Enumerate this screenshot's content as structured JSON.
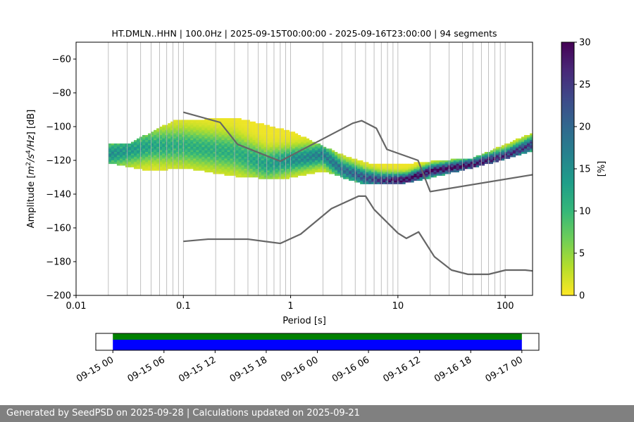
{
  "chart_data": [
    {
      "type": "heatmap",
      "title": "HT.DMLN..HHN | 100.0Hz | 2025-09-15T00:00:00 - 2025-09-16T23:00:00 | 94 segments",
      "xlabel": "Period [s]",
      "ylabel_parts": [
        "Amplitude [",
        "m",
        "2",
        "/s",
        "4",
        "/Hz",
        "] [dB]"
      ],
      "xscale": "log",
      "xlim": [
        0.01,
        180
      ],
      "ylim": [
        -200,
        -50
      ],
      "xticks": [
        0.01,
        0.1,
        1,
        10,
        100
      ],
      "xtick_labels": [
        "0.01",
        "0.1",
        "1",
        "10",
        "100"
      ],
      "yticks": [
        -60,
        -80,
        -100,
        -120,
        -140,
        -160,
        -180,
        -200
      ],
      "ytick_labels": [
        "−60",
        "−80",
        "−100",
        "−120",
        "−140",
        "−160",
        "−180",
        "−200"
      ],
      "grid": "x-major-minor",
      "colorbar": {
        "label": "[%]",
        "range": [
          0,
          30
        ],
        "ticks": [
          0,
          5,
          10,
          15,
          20,
          25,
          30
        ],
        "colormap": "viridis_r",
        "colors": [
          "#fde725",
          "#b5de2b",
          "#6ece58",
          "#35b779",
          "#1f9e89",
          "#26828e",
          "#31688e",
          "#3e4989",
          "#482878",
          "#440154"
        ]
      },
      "noise_model_color": "#666666",
      "series": [
        {
          "points": [
            [
              0.1,
              -91.5
            ],
            [
              0.22,
              -97.5
            ],
            [
              0.32,
              -110.5
            ],
            [
              0.8,
              -120.5
            ],
            [
              3.8,
              -98
            ],
            [
              4.6,
              -96.5
            ],
            [
              6.3,
              -101
            ],
            [
              7.9,
              -113.5
            ],
            [
              15.4,
              -120
            ],
            [
              20,
              -138.5
            ],
            [
              180,
              -128.5
            ]
          ]
        },
        {
          "points": [
            [
              0.1,
              -168
            ],
            [
              0.17,
              -166.7
            ],
            [
              0.4,
              -166.7
            ],
            [
              0.8,
              -169.2
            ],
            [
              1.24,
              -163.7
            ],
            [
              2.4,
              -148.6
            ],
            [
              4.3,
              -141.2
            ],
            [
              5.0,
              -141.2
            ],
            [
              6.0,
              -149.1
            ],
            [
              10,
              -163.1
            ],
            [
              12,
              -166.2
            ],
            [
              15.6,
              -162.4
            ],
            [
              21.9,
              -177.1
            ],
            [
              31.6,
              -185
            ],
            [
              45,
              -187.5
            ],
            [
              70,
              -187.5
            ],
            [
              101,
              -185
            ],
            [
              154,
              -185
            ],
            [
              180,
              -185.5
            ]
          ]
        }
      ],
      "psd_band": {
        "mode": [
          [
            0.02,
            -116
          ],
          [
            0.05,
            -111
          ],
          [
            0.1,
            -111
          ],
          [
            0.3,
            -115
          ],
          [
            0.6,
            -122
          ],
          [
            2,
            -116
          ],
          [
            3,
            -125
          ],
          [
            5,
            -130
          ],
          [
            7,
            -131.5
          ],
          [
            12,
            -131
          ],
          [
            20,
            -126
          ],
          [
            50,
            -122
          ],
          [
            100,
            -117
          ],
          [
            180,
            -110
          ]
        ],
        "spread": [
          [
            0.02,
            5
          ],
          [
            0.1,
            7
          ],
          [
            0.3,
            7
          ],
          [
            1,
            5
          ],
          [
            3,
            4
          ],
          [
            10,
            2.5
          ],
          [
            30,
            2.5
          ],
          [
            180,
            3
          ]
        ],
        "upper": [
          [
            0.03,
            -110
          ],
          [
            0.08,
            -96
          ],
          [
            0.3,
            -94
          ],
          [
            1,
            -102
          ],
          [
            3,
            -116
          ],
          [
            6,
            -122
          ],
          [
            10,
            -122
          ],
          [
            20,
            -120
          ],
          [
            50,
            -118
          ],
          [
            100,
            -110
          ],
          [
            180,
            -103
          ]
        ],
        "lower": [
          [
            0.02,
            -121
          ],
          [
            0.05,
            -126
          ],
          [
            0.1,
            -124
          ],
          [
            0.3,
            -129
          ],
          [
            0.8,
            -131
          ],
          [
            2,
            -126
          ],
          [
            5,
            -134
          ],
          [
            10,
            -134
          ],
          [
            20,
            -130
          ],
          [
            50,
            -124
          ],
          [
            100,
            -119
          ],
          [
            180,
            -114
          ]
        ]
      }
    },
    {
      "type": "timeline",
      "x_range": [
        "2025-09-14T22:00:00",
        "2025-09-17T02:00:00"
      ],
      "tick_labels": [
        "09-15 00",
        "09-15 06",
        "09-15 12",
        "09-15 18",
        "09-16 00",
        "09-16 06",
        "09-16 12",
        "09-16 18",
        "09-17 00"
      ],
      "tick_times": [
        "2025-09-15T00:00:00",
        "2025-09-15T06:00:00",
        "2025-09-15T12:00:00",
        "2025-09-15T18:00:00",
        "2025-09-16T00:00:00",
        "2025-09-16T06:00:00",
        "2025-09-16T12:00:00",
        "2025-09-16T18:00:00",
        "2025-09-17T00:00:00"
      ],
      "bars": [
        {
          "start": "2025-09-15T00:00:00",
          "end": "2025-09-17T00:00:00",
          "color": "#008000"
        },
        {
          "start": "2025-09-15T00:00:00",
          "end": "2025-09-17T00:00:00",
          "color": "#0000ff"
        }
      ]
    }
  ],
  "footer": {
    "text": "Generated by SeedPSD on 2025-09-28 | Calculations updated on 2025-09-21"
  }
}
